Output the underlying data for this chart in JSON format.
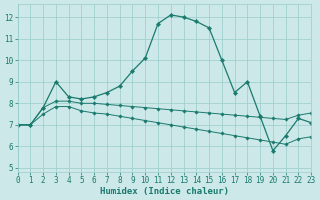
{
  "bg_color": "#cce8e8",
  "grid_color": "#99cccc",
  "line_color": "#1a7a6e",
  "xlim": [
    0,
    23
  ],
  "ylim": [
    4.8,
    12.6
  ],
  "yticks": [
    5,
    6,
    7,
    8,
    9,
    10,
    11,
    12
  ],
  "xticks": [
    0,
    1,
    2,
    3,
    4,
    5,
    6,
    7,
    8,
    9,
    10,
    11,
    12,
    13,
    14,
    15,
    16,
    17,
    18,
    19,
    20,
    21,
    22,
    23
  ],
  "xlabel": "Humidex (Indice chaleur)",
  "line1_y": [
    7.0,
    7.0,
    7.8,
    9.0,
    8.3,
    8.2,
    8.3,
    8.5,
    8.8,
    9.5,
    10.1,
    11.7,
    12.1,
    12.0,
    11.8,
    11.5,
    10.0,
    8.5,
    9.0,
    7.4,
    5.8,
    6.5,
    7.3,
    7.1
  ],
  "line2_y": [
    7.0,
    7.0,
    7.8,
    8.1,
    8.1,
    8.0,
    8.0,
    7.95,
    7.9,
    7.85,
    7.8,
    7.75,
    7.7,
    7.65,
    7.6,
    7.55,
    7.5,
    7.45,
    7.4,
    7.35,
    7.3,
    7.25,
    7.45,
    7.55
  ],
  "line3_y": [
    7.0,
    7.0,
    7.5,
    7.85,
    7.85,
    7.65,
    7.55,
    7.5,
    7.4,
    7.3,
    7.2,
    7.1,
    7.0,
    6.9,
    6.8,
    6.7,
    6.6,
    6.5,
    6.4,
    6.3,
    6.2,
    6.1,
    6.35,
    6.45
  ]
}
